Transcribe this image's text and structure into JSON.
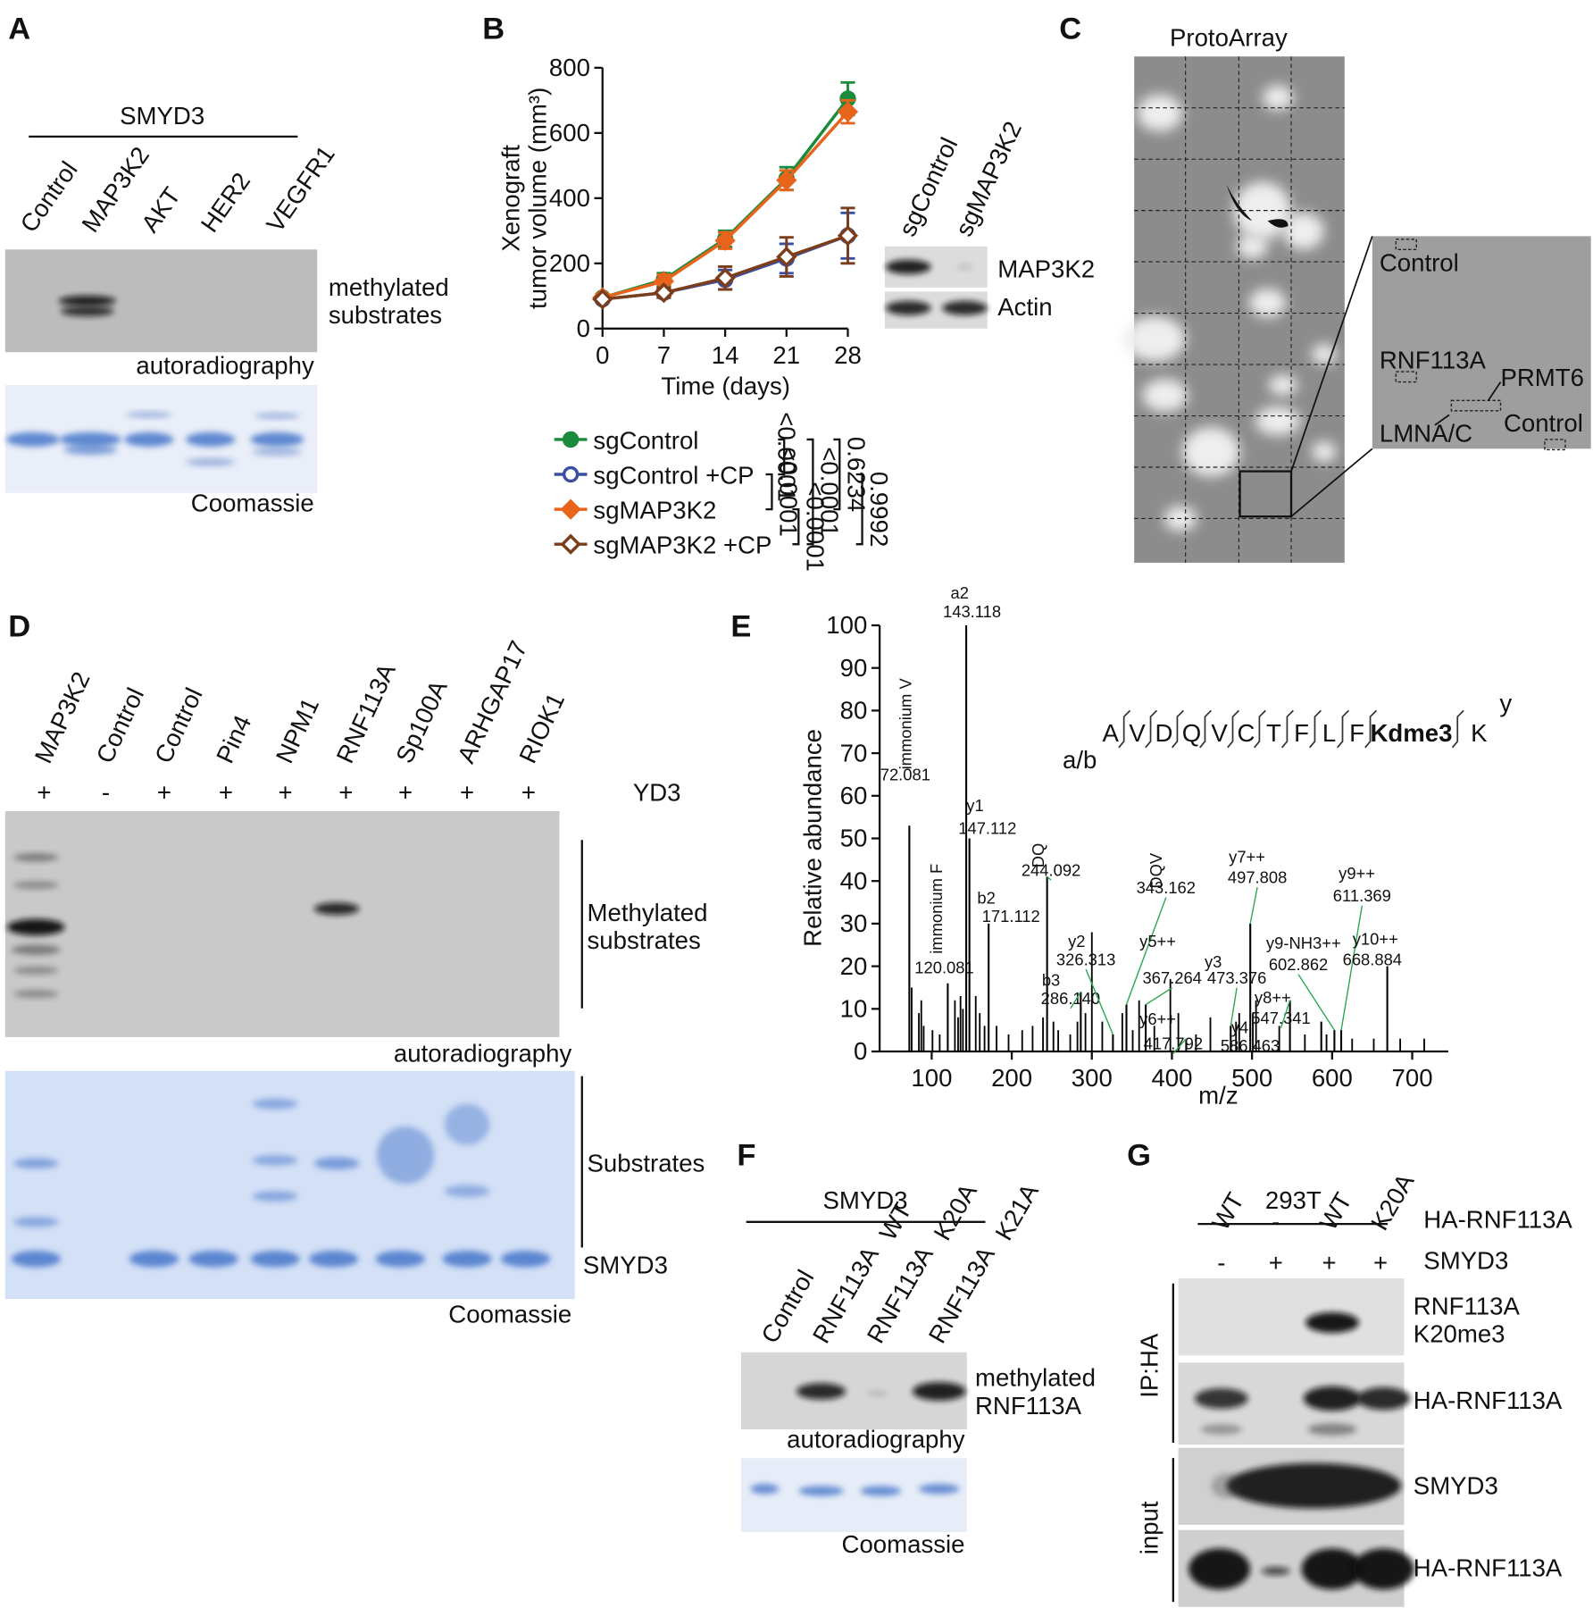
{
  "panels": {
    "A": {
      "letter": "A",
      "header": "SMYD3",
      "lanes": [
        "Control",
        "MAP3K2",
        "AKT",
        "HER2",
        "VEGFR1"
      ],
      "autorad_label": [
        "methylated",
        "substrates"
      ],
      "autorad_caption": "autoradiography",
      "coomassie_caption": "Coomassie"
    },
    "B": {
      "letter": "B",
      "blot_lanes": [
        "sgControl",
        "sgMAP3K2"
      ],
      "blot_labels": [
        "MAP3K2",
        "Actin"
      ],
      "p_values": [
        "<0.0001",
        "<0.0001",
        "0.6234",
        "<0.0001",
        "<0.0001",
        "0.9992"
      ]
    },
    "C": {
      "letter": "C",
      "title": "ProtoArray",
      "inset_labels": [
        "Control",
        "RNF113A",
        "PRMT6",
        "LMNA/C",
        "Control"
      ]
    },
    "D": {
      "letter": "D",
      "lanes": [
        "MAP3K2",
        "Control",
        "Control",
        "Pin4",
        "NPM1",
        "RNF113A",
        "Sp100A",
        "ARHGAP17",
        "RIOK1"
      ],
      "treatment": [
        "+",
        "-",
        "+",
        "+",
        "+",
        "+",
        "+",
        "+",
        "+"
      ],
      "treatment_label": "YD3",
      "autorad_label": [
        "Methylated",
        "substrates"
      ],
      "autorad_caption": "autoradiography",
      "substrates_label": "Substrates",
      "enzyme_label": "SMYD3",
      "coomassie_caption": "Coomassie"
    },
    "E": {
      "letter": "E",
      "peptide": [
        "A",
        "V",
        "D",
        "Q",
        "V",
        "C",
        "T",
        "F",
        "L",
        "F",
        "Kdme3",
        "K"
      ],
      "n_term_ions": "a/b",
      "c_term_ions": "y"
    },
    "F": {
      "letter": "F",
      "header": "SMYD3",
      "lanes": [
        {
          "name": "Control"
        },
        {
          "name": "RNF113A",
          "variant": "WT"
        },
        {
          "name": "RNF113A",
          "variant": "K20A"
        },
        {
          "name": "RNF113A",
          "variant": "K21A"
        }
      ],
      "autorad_label": [
        "methylated",
        "RNF113A"
      ],
      "autorad_caption": "autoradiography",
      "coomassie_caption": "Coomassie"
    },
    "G": {
      "letter": "G",
      "header": "293T",
      "row1": [
        "WT",
        "-",
        "WT",
        "K20A"
      ],
      "row1_label": "HA-RNF113A",
      "row2": [
        "-",
        "+",
        "+",
        "+"
      ],
      "row2_label": "SMYD3",
      "blot_labels": [
        [
          "RNF113A",
          "K20me3"
        ],
        [
          "HA-RNF113A"
        ],
        [
          "SMYD3"
        ],
        [
          "HA-RNF113A"
        ]
      ],
      "ip_label": "IP:HA",
      "input_label": "input"
    }
  },
  "chart_data": [
    {
      "type": "line",
      "xlabel": "Time (days)",
      "ylabel": [
        "Xenograft",
        "tumor volume (mm³)"
      ],
      "x": [
        0,
        7,
        14,
        21,
        28
      ],
      "xlim": [
        0,
        28
      ],
      "xticks": [
        0,
        7,
        14,
        21,
        28
      ],
      "ylim": [
        0,
        800
      ],
      "yticks": [
        0,
        200,
        400,
        600,
        800
      ],
      "series": [
        {
          "name": "sgControl",
          "color": "#1a8a3c",
          "marker": "circle",
          "filled": true,
          "values": [
            95,
            150,
            275,
            460,
            705
          ],
          "errors": [
            10,
            20,
            25,
            35,
            50
          ]
        },
        {
          "name": "sgControl +CP",
          "color": "#3b4ea3",
          "marker": "circle",
          "filled": false,
          "values": [
            90,
            110,
            150,
            215,
            285
          ],
          "errors": [
            8,
            15,
            30,
            45,
            70
          ]
        },
        {
          "name": "sgMAP3K2",
          "color": "#e8641c",
          "marker": "diamond",
          "filled": true,
          "values": [
            95,
            145,
            270,
            455,
            665
          ],
          "errors": [
            10,
            20,
            25,
            30,
            35
          ]
        },
        {
          "name": "sgMAP3K2 +CP",
          "color": "#7b3d1a",
          "marker": "diamond",
          "filled": false,
          "values": [
            90,
            110,
            155,
            220,
            285
          ],
          "errors": [
            8,
            15,
            35,
            60,
            85
          ]
        }
      ]
    },
    {
      "type": "stem",
      "xlabel": "m/z",
      "ylabel": "Relative abundance",
      "color": "#000000",
      "xlim": [
        35,
        745
      ],
      "xticks": [
        100,
        200,
        300,
        400,
        500,
        600,
        700
      ],
      "ylim": [
        0,
        100
      ],
      "yticks": [
        0,
        10,
        20,
        30,
        40,
        50,
        60,
        70,
        80,
        90,
        100
      ],
      "x": [
        75,
        84,
        87,
        90,
        101,
        110,
        129,
        133,
        136,
        139,
        155,
        160,
        166,
        181,
        196,
        213,
        226,
        239,
        252,
        258,
        273,
        282,
        292,
        300,
        313,
        338,
        351,
        359,
        378,
        398,
        408,
        430,
        448,
        480,
        484,
        501,
        505,
        534,
        566,
        593,
        625,
        652,
        685,
        715
      ],
      "values": [
        15,
        9,
        12,
        6,
        5,
        4,
        12,
        8,
        13,
        10,
        13,
        9,
        6,
        6,
        4,
        5,
        6,
        8,
        7,
        5,
        4,
        7,
        9,
        28,
        7,
        9,
        5,
        12,
        6,
        17,
        9,
        4,
        8,
        7,
        9,
        9,
        12,
        6,
        4,
        4,
        3,
        3,
        3,
        3
      ],
      "annotations": [
        {
          "mz": 72.081,
          "y": 53,
          "ion": "immonium V",
          "color": "#1a9a4a"
        },
        {
          "mz": 120.081,
          "y": 16,
          "ion": "immonium F",
          "color": "#1a9a4a"
        },
        {
          "mz": 143.118,
          "y": 100,
          "ion": "a2",
          "color": "#d42020"
        },
        {
          "mz": 147.112,
          "y": 50,
          "ion": "y1",
          "color": "#d42020"
        },
        {
          "mz": 171.112,
          "y": 30,
          "ion": "b2",
          "color": "#d42020"
        },
        {
          "mz": 244.092,
          "y": 41,
          "ion": "DQ",
          "color": "#1a9a4a"
        },
        {
          "mz": 286.14,
          "mz_label": "286.140",
          "y": 14,
          "ion": "b3",
          "color": "#d42020"
        },
        {
          "mz": 326.313,
          "y": 4,
          "ion": "y2",
          "color": "#d42020"
        },
        {
          "mz": 343.162,
          "y": 11,
          "ion": "DQV",
          "color": "#1a9a4a"
        },
        {
          "mz": 367.264,
          "y": 11,
          "ion": "y5++",
          "color": "#d42020"
        },
        {
          "mz": 417.792,
          "y": 3,
          "ion": "y6++",
          "color": "#d42020"
        },
        {
          "mz": 473.376,
          "y": 6,
          "ion": "y3",
          "color": "#d42020"
        },
        {
          "mz": 497.808,
          "y": 30,
          "ion": "y7++",
          "color": "#d42020"
        },
        {
          "mz": 547.341,
          "y": 12,
          "ion": "y8++",
          "color": "#d42020"
        },
        {
          "mz": 586.463,
          "y": 7,
          "ion": "y4",
          "color": "#d42020"
        },
        {
          "mz": 602.862,
          "y": 5,
          "ion": "y9-NH3++",
          "color": "#d42020"
        },
        {
          "mz": 611.369,
          "y": 5,
          "ion": "y9++",
          "color": "#d42020"
        },
        {
          "mz": 668.884,
          "y": 20,
          "ion": "y10++",
          "color": "#d42020"
        }
      ]
    }
  ]
}
